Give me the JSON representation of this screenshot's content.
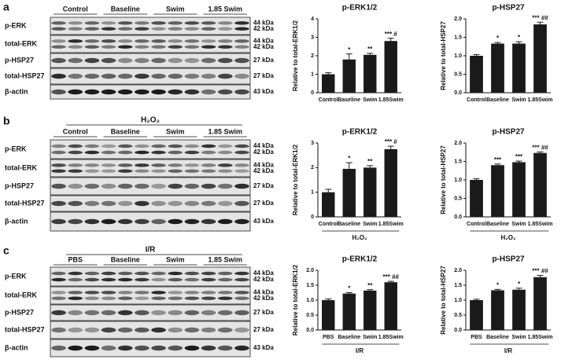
{
  "blots": [
    {
      "panel": "a",
      "groups": [
        "Control",
        "Baseline",
        "Swim",
        "1.85 Swim"
      ],
      "rows": [
        {
          "label": "p-ERK",
          "kda": [
            "44 kDa",
            "42 kDa"
          ]
        },
        {
          "label": "total-ERK",
          "kda": [
            "44 kDa",
            "42 kDa"
          ]
        },
        {
          "label": "p-HSP27",
          "kda": [
            "27 kDa"
          ]
        },
        {
          "label": "total-HSP27",
          "kda": [
            "27 kDa"
          ]
        },
        {
          "label": "β-actin",
          "kda": [
            "43 kDa"
          ]
        }
      ]
    },
    {
      "panel": "b",
      "header": "H₂O₂",
      "groups": [
        "Control",
        "Baseline",
        "Swim",
        "1.85 Swim"
      ],
      "rows": [
        {
          "label": "p-ERK",
          "kda": [
            "44 kDa",
            "42 kDa"
          ]
        },
        {
          "label": "total-ERK",
          "kda": [
            "44 kDa",
            "42 kDa"
          ]
        },
        {
          "label": "p-HSP27",
          "kda": [
            "27 kDa"
          ]
        },
        {
          "label": "total-HSP27",
          "kda": [
            "27 kDa"
          ]
        },
        {
          "label": "β-actin",
          "kda": [
            "43 kDa"
          ]
        }
      ]
    },
    {
      "panel": "c",
      "header": "I/R",
      "groups": [
        "PBS",
        "Baseline",
        "Swim",
        "1.85 Swim"
      ],
      "rows": [
        {
          "label": "p-ERK",
          "kda": [
            "44 kDa",
            "42 kDa"
          ]
        },
        {
          "label": "total-ERK",
          "kda": [
            "44 kDa",
            "42 kDa"
          ]
        },
        {
          "label": "p-HSP27",
          "kda": [
            "27 kDa"
          ]
        },
        {
          "label": "total-HSP27",
          "kda": [
            "27 kDa"
          ]
        },
        {
          "label": "β-actin",
          "kda": [
            "43 kDa"
          ]
        }
      ]
    }
  ],
  "chart_data": [
    {
      "type": "bar",
      "title": "p-ERK1/2",
      "ylabel": "Relative to total-ERK1/2",
      "color": "#1a1a1a",
      "categories": [
        "Control",
        "Baseline",
        "Swim",
        "1.85Swim"
      ],
      "values": [
        1.0,
        1.8,
        2.05,
        2.8
      ],
      "errors": [
        0.08,
        0.3,
        0.08,
        0.15
      ],
      "annotations": [
        null,
        "*",
        "**",
        "*** #"
      ],
      "ylim": [
        0,
        4
      ],
      "yticks": [
        0,
        1,
        2,
        3,
        4
      ]
    },
    {
      "type": "bar",
      "title": "p-HSP27",
      "ylabel": "Relative to total-HSP27",
      "color": "#1a1a1a",
      "categories": [
        "Control",
        "Baseline",
        "Swim",
        "1.85Swim"
      ],
      "values": [
        1.0,
        1.33,
        1.33,
        1.85
      ],
      "errors": [
        0.03,
        0.03,
        0.05,
        0.06
      ],
      "annotations": [
        null,
        "*",
        "*",
        "*** ##"
      ],
      "ylim": [
        0,
        2
      ],
      "yticks": [
        {
          "value": 0,
          "label": "0.0"
        },
        0.5,
        {
          "value": 1,
          "label": "1.0"
        },
        1.5,
        {
          "value": 2,
          "label": "2.0"
        }
      ]
    },
    {
      "type": "bar",
      "title": "p-ERK1/2",
      "ylabel": "Relative to total-ERK1/2",
      "color": "#1a1a1a",
      "group_label": "H₂O₂",
      "categories": [
        "Control",
        "Baseline",
        "Swim",
        "1.85Swim"
      ],
      "values": [
        1.0,
        1.95,
        2.0,
        2.75
      ],
      "errors": [
        0.12,
        0.25,
        0.08,
        0.12
      ],
      "annotations": [
        null,
        "*",
        "**",
        "*** #"
      ],
      "ylim": [
        0,
        3
      ],
      "yticks": [
        0,
        1,
        2,
        3
      ]
    },
    {
      "type": "bar",
      "title": "p-HSP27",
      "ylabel": "Relative to total-HSP27",
      "color": "#1a1a1a",
      "group_label": "H₂O₂",
      "categories": [
        "Control",
        "Baseline",
        "Swim",
        "1.85Swim"
      ],
      "values": [
        1.0,
        1.4,
        1.48,
        1.73
      ],
      "errors": [
        0.03,
        0.03,
        0.03,
        0.03
      ],
      "annotations": [
        null,
        "***",
        "***",
        "*** ##"
      ],
      "ylim": [
        0,
        2
      ],
      "yticks": [
        {
          "value": 0,
          "label": "0.0"
        },
        0.5,
        {
          "value": 1,
          "label": "1.0"
        },
        1.5,
        {
          "value": 2,
          "label": "2.0"
        }
      ]
    },
    {
      "type": "bar",
      "title": "p-ERK1/2",
      "ylabel": "Relative to total-ERK1/2",
      "color": "#1a1a1a",
      "group_label": "I/R",
      "categories": [
        "PBS",
        "Baseline",
        "Swim",
        "1.85Swim"
      ],
      "values": [
        1.0,
        1.22,
        1.32,
        1.6
      ],
      "errors": [
        0.04,
        0.03,
        0.03,
        0.03
      ],
      "annotations": [
        null,
        "*",
        "**",
        "*** ##"
      ],
      "ylim": [
        0,
        2
      ],
      "yticks": [
        {
          "value": 0,
          "label": "0.0"
        },
        0.5,
        {
          "value": 1,
          "label": "1.0"
        },
        1.5,
        {
          "value": 2,
          "label": "2.0"
        }
      ]
    },
    {
      "type": "bar",
      "title": "p-HSP27",
      "ylabel": "Relative to total-HSP27",
      "color": "#1a1a1a",
      "group_label": "I/R",
      "categories": [
        "PBS",
        "Baseline",
        "Swim",
        "1.85Swim"
      ],
      "values": [
        1.0,
        1.33,
        1.35,
        1.77
      ],
      "errors": [
        0.03,
        0.03,
        0.05,
        0.06
      ],
      "annotations": [
        null,
        "*",
        "*",
        "*** ##"
      ],
      "ylim": [
        0,
        2
      ],
      "yticks": [
        {
          "value": 0,
          "label": "0.0"
        },
        0.5,
        {
          "value": 1,
          "label": "1.0"
        },
        1.5,
        {
          "value": 2,
          "label": "2.0"
        }
      ]
    }
  ]
}
